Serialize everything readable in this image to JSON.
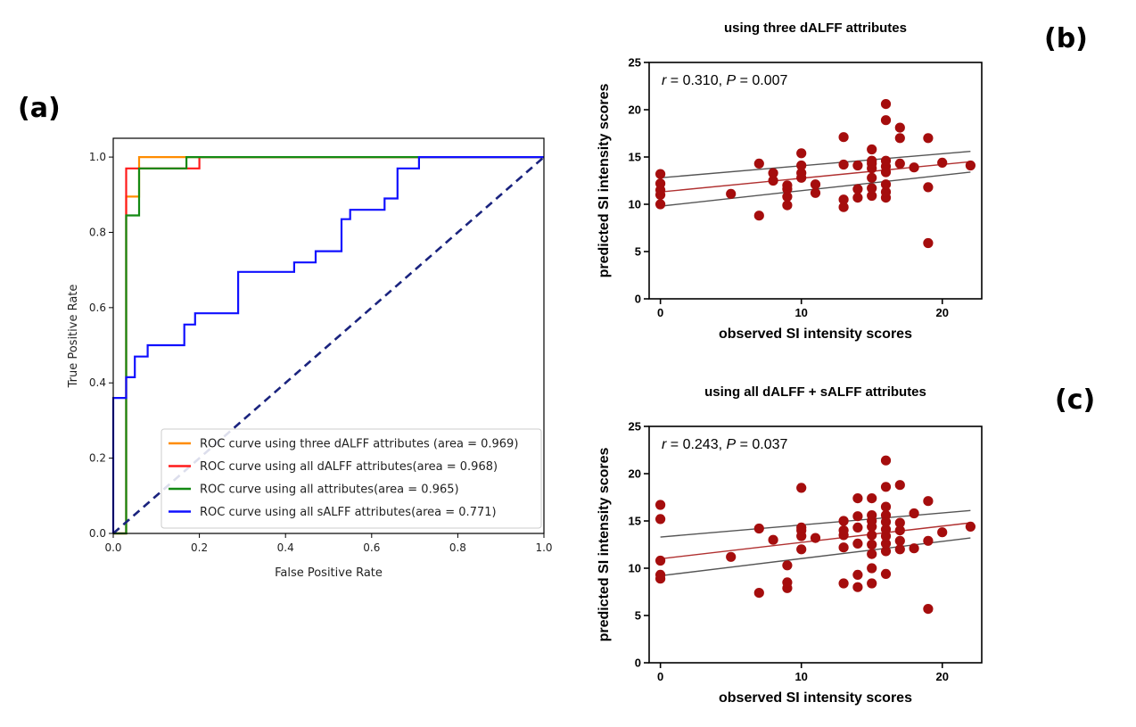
{
  "panel_labels": {
    "a": "(a)",
    "b": "(b)",
    "c": "(c)"
  },
  "colors": {
    "orange": "#ff8c00",
    "red": "#ff1a1a",
    "green": "#138a13",
    "blue": "#1010ff",
    "diagonal": "#1a237e",
    "point": "#a50d0d",
    "fit": "#b03030",
    "ci": "#555555"
  },
  "chart_data": [
    {
      "id": "roc",
      "type": "line",
      "title": "",
      "xlabel": "False Positive Rate",
      "ylabel": "True Positive Rate",
      "xlim": [
        0.0,
        1.0
      ],
      "ylim": [
        0.0,
        1.05
      ],
      "xticks": [
        0.0,
        0.2,
        0.4,
        0.6,
        0.8,
        1.0
      ],
      "xtick_labels": [
        "0.0",
        "0.2",
        "0.4",
        "0.6",
        "0.8",
        "1.0"
      ],
      "yticks": [
        0.0,
        0.2,
        0.4,
        0.6,
        0.8,
        1.0
      ],
      "ytick_labels": [
        "0.0",
        "0.2",
        "0.4",
        "0.6",
        "0.8",
        "1.0"
      ],
      "legend_position": "lower-right",
      "series": [
        {
          "name": "ROC curve using three dALFF attributes (area = 0.969)",
          "color": "#ff8c00",
          "x": [
            0,
            0.03,
            0.03,
            0.06,
            0.06,
            1.0
          ],
          "y": [
            0,
            0,
            0.895,
            0.895,
            1.0,
            1.0
          ]
        },
        {
          "name": "ROC curve using all dALFF attributes(area = 0.968)",
          "color": "#ff1a1a",
          "x": [
            0,
            0.03,
            0.03,
            0.17,
            0.17,
            0.2,
            0.2,
            1.0
          ],
          "y": [
            0,
            0,
            0.97,
            0.97,
            0.97,
            0.97,
            1.0,
            1.0
          ]
        },
        {
          "name": "ROC curve using all attributes(area = 0.965)",
          "color": "#138a13",
          "x": [
            0,
            0.03,
            0.03,
            0.06,
            0.06,
            0.17,
            0.17,
            1.0
          ],
          "y": [
            0,
            0,
            0.845,
            0.845,
            0.97,
            0.97,
            1.0,
            1.0
          ]
        },
        {
          "name": "ROC curve using all sALFF attributes(area = 0.771)",
          "color": "#1010ff",
          "x": [
            0,
            0,
            0.03,
            0.03,
            0.05,
            0.05,
            0.08,
            0.08,
            0.165,
            0.165,
            0.19,
            0.19,
            0.29,
            0.29,
            0.42,
            0.42,
            0.47,
            0.47,
            0.53,
            0.53,
            0.55,
            0.55,
            0.63,
            0.63,
            0.66,
            0.66,
            0.71,
            0.71,
            1.0
          ],
          "y": [
            0,
            0.36,
            0.36,
            0.415,
            0.415,
            0.47,
            0.47,
            0.5,
            0.5,
            0.555,
            0.555,
            0.585,
            0.585,
            0.695,
            0.695,
            0.72,
            0.72,
            0.75,
            0.75,
            0.835,
            0.835,
            0.86,
            0.86,
            0.89,
            0.89,
            0.97,
            0.97,
            1.0,
            1.0
          ]
        }
      ],
      "diagonal": {
        "x": [
          0,
          1
        ],
        "y": [
          0,
          1
        ],
        "dash": true
      }
    },
    {
      "id": "scatter_b",
      "type": "scatter",
      "title": "using three dALFF attributes",
      "xlabel": "observed SI intensity scores",
      "ylabel": "predicted SI intensity scores",
      "xlim": [
        -0.8,
        22.8
      ],
      "ylim": [
        0,
        25
      ],
      "xticks": [
        0,
        10,
        20
      ],
      "xtick_labels": [
        "0",
        "10",
        "20"
      ],
      "yticks": [
        0,
        5,
        10,
        15,
        20,
        25
      ],
      "ytick_labels": [
        "0",
        "5",
        "10",
        "15",
        "20",
        "25"
      ],
      "annotation": {
        "r_label": "r",
        "r_text": " = 0.310, ",
        "p_label": "P",
        "p_text": " = 0.007"
      },
      "points": [
        [
          0,
          10.0
        ],
        [
          0,
          11.0
        ],
        [
          0,
          11.5
        ],
        [
          0,
          12.2
        ],
        [
          0,
          13.2
        ],
        [
          5,
          11.1
        ],
        [
          7,
          8.8
        ],
        [
          7,
          14.3
        ],
        [
          8,
          12.5
        ],
        [
          8,
          13.3
        ],
        [
          9,
          9.9
        ],
        [
          9,
          10.8
        ],
        [
          9,
          11.6
        ],
        [
          9,
          12.0
        ],
        [
          10,
          12.8
        ],
        [
          10,
          13.3
        ],
        [
          10,
          14.1
        ],
        [
          10,
          15.4
        ],
        [
          11,
          11.2
        ],
        [
          11,
          12.1
        ],
        [
          13,
          9.7
        ],
        [
          13,
          10.5
        ],
        [
          13,
          14.2
        ],
        [
          13,
          17.1
        ],
        [
          14,
          10.7
        ],
        [
          14,
          11.6
        ],
        [
          14,
          14.1
        ],
        [
          15,
          10.9
        ],
        [
          15,
          11.7
        ],
        [
          15,
          12.8
        ],
        [
          15,
          13.8
        ],
        [
          15,
          14.3
        ],
        [
          15,
          14.6
        ],
        [
          15,
          15.8
        ],
        [
          16,
          10.7
        ],
        [
          16,
          11.3
        ],
        [
          16,
          12.1
        ],
        [
          16,
          13.4
        ],
        [
          16,
          14.0
        ],
        [
          16,
          14.6
        ],
        [
          16,
          18.9
        ],
        [
          16,
          20.6
        ],
        [
          17,
          14.3
        ],
        [
          17,
          17.0
        ],
        [
          17,
          18.1
        ],
        [
          18,
          13.9
        ],
        [
          19,
          5.9
        ],
        [
          19,
          11.8
        ],
        [
          19,
          17.0
        ],
        [
          20,
          14.4
        ],
        [
          22,
          14.1
        ]
      ],
      "fit_line": [
        [
          0,
          11.3
        ],
        [
          22,
          14.5
        ]
      ],
      "ci_upper": [
        [
          0,
          12.8
        ],
        [
          22,
          15.6
        ]
      ],
      "ci_lower": [
        [
          0,
          9.8
        ],
        [
          22,
          13.4
        ]
      ]
    },
    {
      "id": "scatter_c",
      "type": "scatter",
      "title": "using all dALFF + sALFF attributes",
      "xlabel": "observed SI intensity scores",
      "ylabel": "predicted SI intensity scores",
      "xlim": [
        -0.8,
        22.8
      ],
      "ylim": [
        0,
        25
      ],
      "xticks": [
        0,
        10,
        20
      ],
      "xtick_labels": [
        "0",
        "10",
        "20"
      ],
      "yticks": [
        0,
        5,
        10,
        15,
        20,
        25
      ],
      "ytick_labels": [
        "0",
        "5",
        "10",
        "15",
        "20",
        "25"
      ],
      "annotation": {
        "r_label": "r",
        "r_text": " = 0.243, ",
        "p_label": "P",
        "p_text": " = 0.037"
      },
      "points": [
        [
          0,
          8.9
        ],
        [
          0,
          9.3
        ],
        [
          0,
          10.8
        ],
        [
          0,
          15.2
        ],
        [
          0,
          16.7
        ],
        [
          5,
          11.2
        ],
        [
          7,
          7.4
        ],
        [
          7,
          14.2
        ],
        [
          8,
          13.0
        ],
        [
          9,
          7.9
        ],
        [
          9,
          8.5
        ],
        [
          9,
          10.3
        ],
        [
          10,
          12.0
        ],
        [
          10,
          13.4
        ],
        [
          10,
          14.0
        ],
        [
          10,
          14.3
        ],
        [
          10,
          18.5
        ],
        [
          11,
          13.2
        ],
        [
          13,
          8.4
        ],
        [
          13,
          12.2
        ],
        [
          13,
          13.5
        ],
        [
          13,
          14.0
        ],
        [
          13,
          15.0
        ],
        [
          14,
          8.0
        ],
        [
          14,
          9.3
        ],
        [
          14,
          12.6
        ],
        [
          14,
          14.3
        ],
        [
          14,
          15.5
        ],
        [
          14,
          17.4
        ],
        [
          15,
          8.4
        ],
        [
          15,
          10.0
        ],
        [
          15,
          11.5
        ],
        [
          15,
          12.5
        ],
        [
          15,
          13.5
        ],
        [
          15,
          14.4
        ],
        [
          15,
          15.0
        ],
        [
          15,
          15.6
        ],
        [
          15,
          17.4
        ],
        [
          16,
          9.4
        ],
        [
          16,
          11.8
        ],
        [
          16,
          12.6
        ],
        [
          16,
          13.4
        ],
        [
          16,
          14.1
        ],
        [
          16,
          14.9
        ],
        [
          16,
          15.6
        ],
        [
          16,
          16.5
        ],
        [
          16,
          18.6
        ],
        [
          16,
          21.4
        ],
        [
          17,
          12.0
        ],
        [
          17,
          12.9
        ],
        [
          17,
          14.0
        ],
        [
          17,
          14.8
        ],
        [
          17,
          18.8
        ],
        [
          18,
          12.1
        ],
        [
          18,
          15.8
        ],
        [
          19,
          5.7
        ],
        [
          19,
          12.9
        ],
        [
          19,
          17.1
        ],
        [
          20,
          13.8
        ],
        [
          22,
          14.4
        ]
      ],
      "fit_line": [
        [
          0,
          11.0
        ],
        [
          22,
          14.8
        ]
      ],
      "ci_upper": [
        [
          0,
          13.3
        ],
        [
          22,
          16.1
        ]
      ],
      "ci_lower": [
        [
          0,
          9.2
        ],
        [
          22,
          13.2
        ]
      ]
    }
  ]
}
